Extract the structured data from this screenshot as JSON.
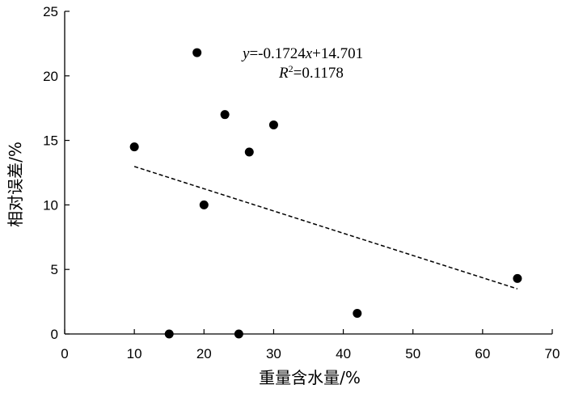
{
  "chart_data": {
    "type": "scatter",
    "xlabel": "重量含水量/%",
    "ylabel": "相对误差/%",
    "xlim": [
      0,
      70
    ],
    "ylim": [
      0,
      25
    ],
    "xticks": [
      0,
      10,
      20,
      30,
      40,
      50,
      60,
      70
    ],
    "yticks": [
      0,
      5,
      10,
      15,
      20,
      25
    ],
    "grid": false,
    "points": [
      {
        "x": 10.0,
        "y": 14.5
      },
      {
        "x": 15.0,
        "y": 0.0
      },
      {
        "x": 19.0,
        "y": 21.8
      },
      {
        "x": 20.0,
        "y": 10.0
      },
      {
        "x": 23.0,
        "y": 17.0
      },
      {
        "x": 25.0,
        "y": 0.0
      },
      {
        "x": 26.5,
        "y": 14.1
      },
      {
        "x": 30.0,
        "y": 16.2
      },
      {
        "x": 42.0,
        "y": 1.6
      },
      {
        "x": 65.0,
        "y": 4.3
      }
    ],
    "trendline": {
      "slope": -0.1724,
      "intercept": 14.701,
      "x_range": [
        10,
        65
      ],
      "style": "dashed"
    },
    "annotations": {
      "equation_y": "y",
      "equation_rest": "=-0.1724",
      "equation_x": "x",
      "equation_tail": "+14.701",
      "r2_r": "R",
      "r2_sup": "2",
      "r2_value": "=0.1178"
    }
  }
}
